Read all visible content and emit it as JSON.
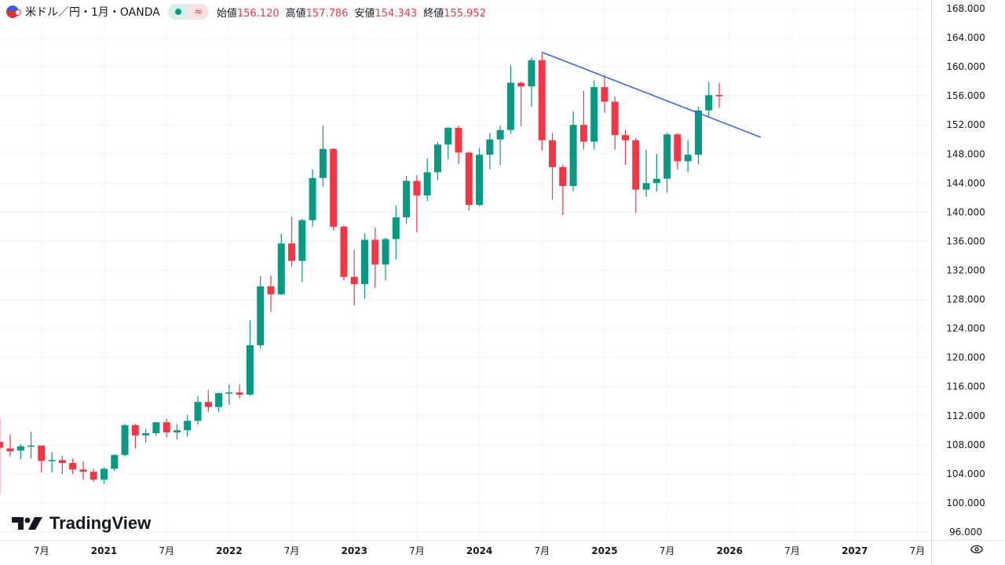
{
  "header": {
    "symbol": "米ドル／円・1月・OANDA",
    "approx_icon": "≈",
    "open_label": "始値",
    "open": "156.120",
    "high_label": "高値",
    "high": "157.786",
    "low_label": "安値",
    "low": "154.343",
    "close_label": "終値",
    "close": "155.952"
  },
  "watermark": "TradingView",
  "colors": {
    "up": "#089981",
    "down": "#f23645",
    "trendline": "#3d6ae0",
    "grid": "#f0f3fa"
  },
  "chart_data": {
    "type": "candlestick",
    "title": "米ドル／円・1月・OANDA",
    "ylim": [
      96,
      168
    ],
    "y_ticks": [
      "168.000",
      "164.000",
      "160.000",
      "156.000",
      "152.000",
      "148.000",
      "144.000",
      "140.000",
      "136.000",
      "132.000",
      "128.000",
      "124.000",
      "120.000",
      "116.000",
      "112.000",
      "108.000",
      "104.000",
      "100.000",
      "96.000"
    ],
    "x_ticks": [
      {
        "label": "7月",
        "month": "2020-07"
      },
      {
        "label": "2021",
        "month": "2021-01"
      },
      {
        "label": "7月",
        "month": "2021-07"
      },
      {
        "label": "2022",
        "month": "2022-01"
      },
      {
        "label": "7月",
        "month": "2022-07"
      },
      {
        "label": "2023",
        "month": "2023-01"
      },
      {
        "label": "7月",
        "month": "2023-07"
      },
      {
        "label": "2024",
        "month": "2024-01"
      },
      {
        "label": "7月",
        "month": "2024-07"
      },
      {
        "label": "2025",
        "month": "2025-01"
      },
      {
        "label": "7月",
        "month": "2025-07"
      },
      {
        "label": "2026",
        "month": "2026-01"
      },
      {
        "label": "7月",
        "month": "2026-07"
      },
      {
        "label": "2027",
        "month": "2027-01"
      },
      {
        "label": "7月",
        "month": "2027-07"
      }
    ],
    "candles": [
      [
        "2020-03",
        108.4,
        111.7,
        101.2,
        107.6
      ],
      [
        "2020-04",
        107.5,
        109.4,
        106.4,
        107.1
      ],
      [
        "2020-05",
        107.2,
        108.1,
        106.0,
        107.8
      ],
      [
        "2020-06",
        107.8,
        109.8,
        106.1,
        107.9
      ],
      [
        "2020-07",
        107.9,
        107.9,
        104.2,
        105.8
      ],
      [
        "2020-08",
        105.8,
        107.0,
        104.2,
        105.9
      ],
      [
        "2020-09",
        105.9,
        106.5,
        104.0,
        105.5
      ],
      [
        "2020-10",
        105.5,
        106.1,
        104.0,
        104.6
      ],
      [
        "2020-11",
        104.6,
        105.7,
        103.2,
        104.3
      ],
      [
        "2020-12",
        104.3,
        104.7,
        102.9,
        103.2
      ],
      [
        "2021-01",
        103.2,
        104.9,
        102.6,
        104.7
      ],
      [
        "2021-02",
        104.7,
        106.7,
        104.4,
        106.6
      ],
      [
        "2021-03",
        106.6,
        110.9,
        106.4,
        110.7
      ],
      [
        "2021-04",
        110.7,
        110.9,
        107.5,
        109.3
      ],
      [
        "2021-05",
        109.3,
        110.2,
        108.3,
        109.6
      ],
      [
        "2021-06",
        109.6,
        111.1,
        109.2,
        111.1
      ],
      [
        "2021-07",
        111.1,
        111.6,
        109.0,
        109.7
      ],
      [
        "2021-08",
        109.7,
        110.8,
        108.7,
        110.0
      ],
      [
        "2021-09",
        110.0,
        112.1,
        109.1,
        111.3
      ],
      [
        "2021-10",
        111.3,
        114.7,
        110.8,
        113.9
      ],
      [
        "2021-11",
        113.9,
        115.5,
        112.5,
        113.2
      ],
      [
        "2021-12",
        113.2,
        115.2,
        112.5,
        115.1
      ],
      [
        "2022-01",
        115.1,
        116.3,
        113.5,
        115.2
      ],
      [
        "2022-02",
        115.2,
        116.3,
        114.4,
        114.9
      ],
      [
        "2022-03",
        114.9,
        125.1,
        114.7,
        121.7
      ],
      [
        "2022-04",
        121.7,
        131.2,
        121.3,
        129.8
      ],
      [
        "2022-05",
        129.8,
        131.3,
        126.3,
        128.7
      ],
      [
        "2022-06",
        128.7,
        137.0,
        128.6,
        135.7
      ],
      [
        "2022-07",
        135.7,
        139.4,
        132.5,
        133.3
      ],
      [
        "2022-08",
        133.3,
        139.1,
        130.4,
        138.9
      ],
      [
        "2022-09",
        138.9,
        145.9,
        138.0,
        144.7
      ],
      [
        "2022-10",
        144.7,
        151.9,
        143.5,
        148.7
      ],
      [
        "2022-11",
        148.7,
        148.8,
        137.5,
        138.0
      ],
      [
        "2022-12",
        138.0,
        138.2,
        130.6,
        131.1
      ],
      [
        "2023-01",
        131.1,
        134.8,
        127.2,
        130.1
      ],
      [
        "2023-02",
        130.1,
        137.1,
        128.1,
        136.2
      ],
      [
        "2023-03",
        136.2,
        137.9,
        129.6,
        132.8
      ],
      [
        "2023-04",
        132.8,
        136.5,
        130.6,
        136.3
      ],
      [
        "2023-05",
        136.3,
        140.9,
        133.5,
        139.3
      ],
      [
        "2023-06",
        139.3,
        145.0,
        138.4,
        144.3
      ],
      [
        "2023-07",
        144.3,
        145.1,
        137.2,
        142.3
      ],
      [
        "2023-08",
        142.3,
        147.4,
        141.5,
        145.5
      ],
      [
        "2023-09",
        145.5,
        149.7,
        144.4,
        149.3
      ],
      [
        "2023-10",
        149.3,
        151.7,
        147.3,
        151.6
      ],
      [
        "2023-11",
        151.6,
        151.9,
        146.6,
        148.2
      ],
      [
        "2023-12",
        148.2,
        148.3,
        140.2,
        141.0
      ],
      [
        "2024-01",
        141.0,
        148.8,
        140.8,
        147.9
      ],
      [
        "2024-02",
        147.9,
        150.9,
        145.9,
        150.0
      ],
      [
        "2024-03",
        150.0,
        151.9,
        146.5,
        151.3
      ],
      [
        "2024-04",
        151.3,
        160.2,
        150.8,
        157.8
      ],
      [
        "2024-05",
        157.8,
        158.0,
        151.8,
        157.3
      ],
      [
        "2024-06",
        157.3,
        161.3,
        154.5,
        160.9
      ],
      [
        "2024-07",
        160.9,
        161.9,
        148.5,
        149.9
      ],
      [
        "2024-08",
        149.9,
        150.9,
        141.7,
        146.2
      ],
      [
        "2024-09",
        146.2,
        146.5,
        139.6,
        143.6
      ],
      [
        "2024-10",
        143.6,
        153.9,
        142.9,
        152.0
      ],
      [
        "2024-11",
        152.0,
        156.7,
        148.6,
        149.7
      ],
      [
        "2024-12",
        149.7,
        158.1,
        148.6,
        157.2
      ],
      [
        "2025-01",
        157.2,
        158.9,
        153.7,
        155.2
      ],
      [
        "2025-02",
        155.2,
        155.9,
        148.6,
        150.6
      ],
      [
        "2025-03",
        150.6,
        151.3,
        146.5,
        149.9
      ],
      [
        "2025-04",
        149.9,
        150.2,
        139.9,
        143.1
      ],
      [
        "2025-05",
        143.1,
        148.6,
        142.1,
        144.0
      ],
      [
        "2025-06",
        144.0,
        148.0,
        142.8,
        144.6
      ],
      [
        "2025-07",
        144.6,
        150.9,
        142.7,
        150.7
      ],
      [
        "2025-08",
        150.7,
        150.9,
        145.9,
        147.0
      ],
      [
        "2025-09",
        147.0,
        149.9,
        145.5,
        147.9
      ],
      [
        "2025-10",
        147.9,
        154.5,
        146.6,
        154.0
      ],
      [
        "2025-11",
        154.0,
        157.9,
        153.0,
        156.1
      ],
      [
        "2025-12",
        156.12,
        157.786,
        154.343,
        155.952
      ]
    ],
    "trendline": [
      [
        "2024-07",
        162.0
      ],
      [
        "2026-04",
        150.3
      ]
    ]
  }
}
